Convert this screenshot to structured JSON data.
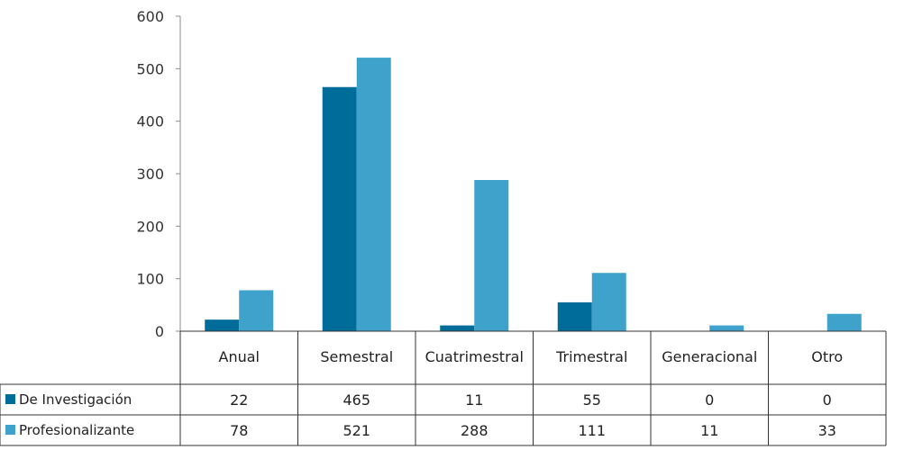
{
  "colors": {
    "series_1": "#006C9A",
    "series_2": "#3FA2CB",
    "axis": "#8c8c8c",
    "table_border": "#333333"
  },
  "chart_data": {
    "type": "bar",
    "categories": [
      "Anual",
      "Semestral",
      "Cuatrimestral",
      "Trimestral",
      "Generacional",
      "Otro"
    ],
    "series": [
      {
        "name": "De Investigación",
        "values": [
          22,
          465,
          11,
          55,
          0,
          0
        ],
        "color": "#006C9A"
      },
      {
        "name": "Profesionalizante",
        "values": [
          78,
          521,
          288,
          111,
          11,
          33
        ],
        "color": "#3FA2CB"
      }
    ],
    "yticks": [
      0,
      100,
      200,
      300,
      400,
      500,
      600
    ],
    "ylim": [
      0,
      600
    ],
    "grid": false,
    "legend": "data-table-left",
    "title": "",
    "xlabel": "",
    "ylabel": ""
  }
}
